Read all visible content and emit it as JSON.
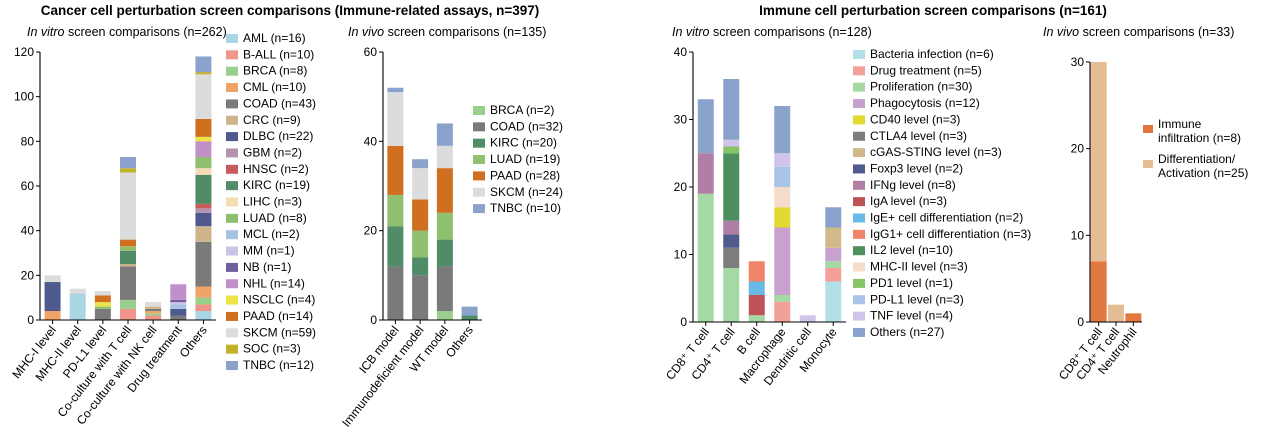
{
  "colors": {
    "AML": "#a9d6e2",
    "B-ALL": "#ef948a",
    "BRCA": "#98cf8d",
    "CML": "#f0a46a",
    "COAD": "#7a7a7a",
    "CRC": "#cdb48b",
    "DLBC": "#4e5a8e",
    "GBM": "#b493b2",
    "HNSC": "#c55d5d",
    "KIRC": "#4f8c67",
    "LIHC": "#f2ddb4",
    "LUAD": "#8fc06f",
    "MCL": "#a7c2e2",
    "MM": "#c8c5e6",
    "NB": "#6f5f9d",
    "NHL": "#c18fca",
    "NSCLC": "#ece447",
    "PAAD": "#cf6f1f",
    "SKCM": "#dcdcdc",
    "SOC": "#c1b22c",
    "TNBC": "#8ba3cc",
    "Bacteria infection": "#b2dfe8",
    "Drug treatment": "#f3a098",
    "Proliferation": "#a5d9a3",
    "Phagocytosis": "#c7a2cf",
    "CD40 level": "#e3d930",
    "CTLA4 level": "#7d7d7d",
    "cGAS-STING level": "#d2b98c",
    "Foxp3 level": "#4f5b8c",
    "IFNg level": "#b07fa6",
    "IgA level": "#bd5358",
    "IgE+ cell differentiation": "#68b9e3",
    "IgG1+ cell differentiation": "#ef8468",
    "IL2 level": "#4f8e5e",
    "MHC-II level": "#f5dccb",
    "PD1 level": "#86c464",
    "PD-L1 level": "#a9c4e8",
    "TNF level": "#cfc5ea",
    "Others": "#8ba3cc",
    "Immune infiltration": "#e3783f",
    "Differentiation/Activation": "#e5bd95"
  },
  "headers": {
    "left": "Cancer cell perturbation screen comparisons (Immune-related assays, n=397)",
    "right": "Immune cell perturbation screen comparisons (n=161)"
  },
  "chart_data": [
    {
      "id": "cancer-in-vitro",
      "type": "bar",
      "stacked": true,
      "subtitle_italic": "In vitro",
      "subtitle_rest": " screen comparisons (n=262)",
      "ylim": [
        0,
        120
      ],
      "yticks": [
        0,
        20,
        40,
        60,
        80,
        100,
        120
      ],
      "categories": [
        "MHC-I level",
        "MHC-II level",
        "PD-L1 level",
        "Co-culture with T cell",
        "Co-culture with NK cell",
        "Drug treatment",
        "Others"
      ],
      "series": [
        {
          "name": "AML",
          "label": "AML (n=16)",
          "values": [
            0,
            12,
            0,
            0,
            0,
            0,
            4
          ]
        },
        {
          "name": "B-ALL",
          "label": "B-ALL (n=10)",
          "values": [
            0,
            0,
            0,
            5,
            2,
            0,
            3
          ]
        },
        {
          "name": "BRCA",
          "label": "BRCA (n=8)",
          "values": [
            0,
            0,
            0,
            4,
            1,
            0,
            3
          ]
        },
        {
          "name": "CML",
          "label": "CML (n=10)",
          "values": [
            4,
            0,
            0,
            0,
            1,
            0,
            5
          ]
        },
        {
          "name": "COAD",
          "label": "COAD (n=43)",
          "values": [
            0,
            0,
            5,
            15,
            1,
            2,
            20
          ]
        },
        {
          "name": "CRC",
          "label": "CRC (n=9)",
          "values": [
            0,
            0,
            0,
            1,
            1,
            0,
            7
          ]
        },
        {
          "name": "DLBC",
          "label": "DLBC (n=22)",
          "values": [
            13,
            0,
            0,
            0,
            0,
            3,
            6
          ]
        },
        {
          "name": "GBM",
          "label": "GBM (n=2)",
          "values": [
            0,
            0,
            0,
            0,
            0,
            0,
            2
          ]
        },
        {
          "name": "HNSC",
          "label": "HNSC (n=2)",
          "values": [
            0,
            0,
            0,
            0,
            0,
            0,
            2
          ]
        },
        {
          "name": "KIRC",
          "label": "KIRC (n=19)",
          "values": [
            0,
            0,
            0,
            6,
            0,
            0,
            13
          ]
        },
        {
          "name": "LIHC",
          "label": "LIHC (n=3)",
          "values": [
            0,
            0,
            0,
            0,
            0,
            0,
            3
          ]
        },
        {
          "name": "LUAD",
          "label": "LUAD (n=8)",
          "values": [
            0,
            0,
            1,
            2,
            0,
            0,
            5
          ]
        },
        {
          "name": "MCL",
          "label": "MCL (n=2)",
          "values": [
            0,
            0,
            0,
            0,
            0,
            2,
            0
          ]
        },
        {
          "name": "MM",
          "label": "MM (n=1)",
          "values": [
            0,
            0,
            0,
            0,
            0,
            1,
            0
          ]
        },
        {
          "name": "NB",
          "label": "NB (n=1)",
          "values": [
            0,
            0,
            0,
            0,
            0,
            1,
            0
          ]
        },
        {
          "name": "NHL",
          "label": "NHL (n=14)",
          "values": [
            0,
            0,
            0,
            0,
            0,
            7,
            7
          ]
        },
        {
          "name": "NSCLC",
          "label": "NSCLC (n=4)",
          "values": [
            0,
            0,
            2,
            0,
            0,
            0,
            2
          ]
        },
        {
          "name": "PAAD",
          "label": "PAAD (n=14)",
          "values": [
            0,
            0,
            3,
            3,
            0,
            0,
            8
          ]
        },
        {
          "name": "SKCM",
          "label": "SKCM (n=59)",
          "values": [
            3,
            2,
            2,
            30,
            2,
            0,
            20
          ]
        },
        {
          "name": "SOC",
          "label": "SOC (n=3)",
          "values": [
            0,
            0,
            0,
            2,
            0,
            0,
            1
          ]
        },
        {
          "name": "TNBC",
          "label": "TNBC (n=12)",
          "values": [
            0,
            0,
            0,
            5,
            0,
            0,
            7
          ]
        }
      ]
    },
    {
      "id": "cancer-in-vivo",
      "type": "bar",
      "stacked": true,
      "subtitle_italic": "In vivo",
      "subtitle_rest": " screen comparisons (n=135)",
      "ylim": [
        0,
        60
      ],
      "yticks": [
        0,
        20,
        40,
        60
      ],
      "categories": [
        "ICB model",
        "Immunodeficient model",
        "WT model",
        "Others"
      ],
      "series": [
        {
          "name": "BRCA",
          "label": "BRCA (n=2)",
          "values": [
            0,
            0,
            2,
            0
          ]
        },
        {
          "name": "COAD",
          "label": "COAD (n=32)",
          "values": [
            12,
            10,
            10,
            0
          ]
        },
        {
          "name": "KIRC",
          "label": "KIRC (n=20)",
          "values": [
            9,
            4,
            6,
            1
          ]
        },
        {
          "name": "LUAD",
          "label": "LUAD (n=19)",
          "values": [
            7,
            6,
            6,
            0
          ]
        },
        {
          "name": "PAAD",
          "label": "PAAD (n=28)",
          "values": [
            11,
            7,
            10,
            0
          ]
        },
        {
          "name": "SKCM",
          "label": "SKCM (n=24)",
          "values": [
            12,
            7,
            5,
            0
          ]
        },
        {
          "name": "TNBC",
          "label": "TNBC (n=10)",
          "values": [
            1,
            2,
            5,
            2
          ]
        }
      ]
    },
    {
      "id": "immune-in-vitro",
      "type": "bar",
      "stacked": true,
      "subtitle_italic": "In vitro",
      "subtitle_rest": " screen comparisons (n=128)",
      "ylim": [
        0,
        40
      ],
      "yticks": [
        0,
        10,
        20,
        30,
        40
      ],
      "categories": [
        "CD8⁺ T cell",
        "CD4⁺ T cell",
        "B cell",
        "Macrophage",
        "Dendritic cell",
        "Monocyte"
      ],
      "series": [
        {
          "name": "Bacteria infection",
          "label": "Bacteria infection (n=6)",
          "values": [
            0,
            0,
            0,
            0,
            0,
            6
          ]
        },
        {
          "name": "Drug treatment",
          "label": "Drug treatment (n=5)",
          "values": [
            0,
            0,
            0,
            3,
            0,
            2
          ]
        },
        {
          "name": "Proliferation",
          "label": "Proliferation (n=30)",
          "values": [
            19,
            8,
            1,
            1,
            0,
            1
          ]
        },
        {
          "name": "Phagocytosis",
          "label": "Phagocytosis (n=12)",
          "values": [
            0,
            0,
            0,
            10,
            0,
            2
          ]
        },
        {
          "name": "CD40 level",
          "label": "CD40 level (n=3)",
          "values": [
            0,
            0,
            0,
            3,
            0,
            0
          ]
        },
        {
          "name": "CTLA4 level",
          "label": "CTLA4 level (n=3)",
          "values": [
            0,
            3,
            0,
            0,
            0,
            0
          ]
        },
        {
          "name": "cGAS-STING level",
          "label": "cGAS-STING level (n=3)",
          "values": [
            0,
            0,
            0,
            0,
            0,
            3
          ]
        },
        {
          "name": "Foxp3 level",
          "label": "Foxp3 level (n=2)",
          "values": [
            0,
            2,
            0,
            0,
            0,
            0
          ]
        },
        {
          "name": "IFNg level",
          "label": "IFNg level (n=8)",
          "values": [
            6,
            2,
            0,
            0,
            0,
            0
          ]
        },
        {
          "name": "IgA level",
          "label": "IgA level (n=3)",
          "values": [
            0,
            0,
            3,
            0,
            0,
            0
          ]
        },
        {
          "name": "IgE+ cell differentiation",
          "label": "IgE+ cell differentiation (n=2)",
          "values": [
            0,
            0,
            2,
            0,
            0,
            0
          ]
        },
        {
          "name": "IgG1+ cell differentiation",
          "label": "IgG1+ cell differentiation (n=3)",
          "values": [
            0,
            0,
            3,
            0,
            0,
            0
          ]
        },
        {
          "name": "IL2 level",
          "label": "IL2 level (n=10)",
          "values": [
            0,
            10,
            0,
            0,
            0,
            0
          ]
        },
        {
          "name": "MHC-II level",
          "label": "MHC-II level (n=3)",
          "values": [
            0,
            0,
            0,
            3,
            0,
            0
          ]
        },
        {
          "name": "PD1 level",
          "label": "PD1 level (n=1)",
          "values": [
            0,
            1,
            0,
            0,
            0,
            0
          ]
        },
        {
          "name": "PD-L1 level",
          "label": "PD-L1 level (n=3)",
          "values": [
            0,
            0,
            0,
            3,
            0,
            0
          ]
        },
        {
          "name": "TNF level",
          "label": "TNF level (n=4)",
          "values": [
            0,
            1,
            0,
            2,
            1,
            0
          ]
        },
        {
          "name": "Others",
          "label": "Others (n=27)",
          "values": [
            8,
            9,
            0,
            7,
            0,
            3
          ]
        }
      ]
    },
    {
      "id": "immune-in-vivo",
      "type": "bar",
      "stacked": true,
      "subtitle_italic": "In vivo",
      "subtitle_rest": " screen comparisons (n=33)",
      "ylim": [
        0,
        30
      ],
      "yticks": [
        0,
        10,
        20,
        30
      ],
      "categories": [
        "CD8⁺ T cell",
        "CD4⁺ T cell",
        "Neutrophil"
      ],
      "series": [
        {
          "name": "Immune infiltration",
          "label": [
            "Immune",
            "infiltration (n=8)"
          ],
          "values": [
            7,
            0,
            1
          ]
        },
        {
          "name": "Differentiation/Activation",
          "label": [
            "Differentiation/",
            "Activation (n=25)"
          ],
          "values": [
            23,
            2,
            0
          ]
        }
      ]
    }
  ]
}
